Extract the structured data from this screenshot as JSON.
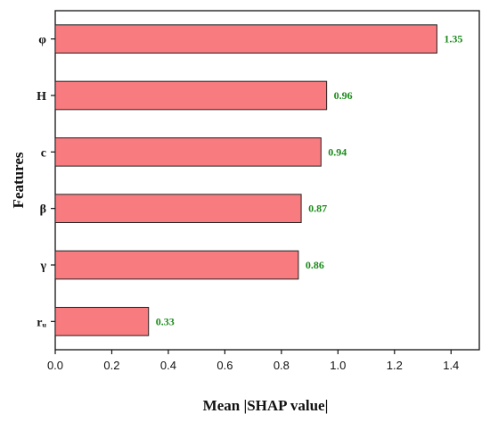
{
  "chart_data": {
    "type": "bar",
    "orientation": "horizontal",
    "categories": [
      "φ",
      "H",
      "c",
      "β",
      "γ",
      "rᵤ"
    ],
    "values": [
      1.35,
      0.96,
      0.94,
      0.87,
      0.86,
      0.33
    ],
    "value_labels": [
      "1.35",
      "0.96",
      "0.94",
      "0.87",
      "0.86",
      "0.33"
    ],
    "xlabel": "Mean |SHAP value|",
    "ylabel": "Features",
    "xlim": [
      0.0,
      1.5
    ],
    "xticks": [
      0.0,
      0.2,
      0.4,
      0.6,
      0.8,
      1.0,
      1.2,
      1.4
    ],
    "xtick_labels": [
      "0.0",
      "0.2",
      "0.4",
      "0.6",
      "0.8",
      "1.0",
      "1.2",
      "1.4"
    ],
    "grid": false,
    "legend": "none",
    "colors": {
      "bar_fill": "#f87b7f",
      "bar_stroke": "#222222",
      "value_label": "#1a8a1a",
      "axis": "#111111"
    }
  }
}
